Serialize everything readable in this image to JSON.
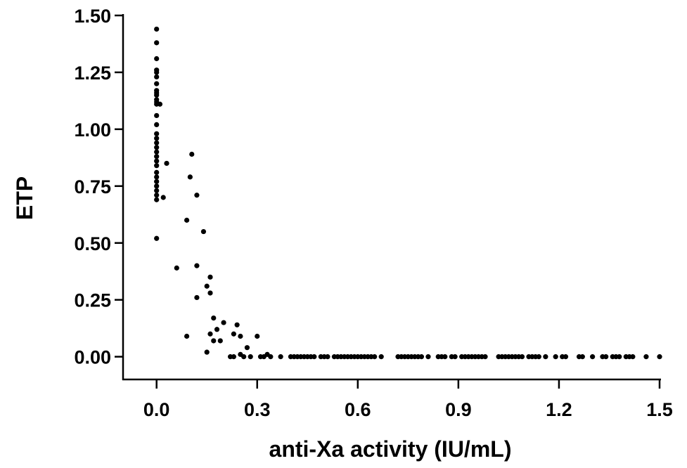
{
  "chart_data": {
    "type": "scatter",
    "xlabel": "anti-Xa activity (IU/mL)",
    "ylabel": "ETP",
    "color": "#000000",
    "x": [
      0,
      0,
      0,
      0,
      0,
      0,
      0,
      0,
      0,
      0,
      0,
      0,
      0,
      0,
      0,
      0,
      0,
      0,
      0,
      0,
      0,
      0,
      0,
      0,
      0,
      0,
      0,
      0,
      0,
      0,
      0,
      0.01,
      0.02,
      0.03,
      0.105,
      0.1,
      0.12,
      0.09,
      0.14,
      0.06,
      0.12,
      0.16,
      0.15,
      0.16,
      0.12,
      0.17,
      0.2,
      0.24,
      0.09,
      0.16,
      0.18,
      0.23,
      0.25,
      0.3,
      0.17,
      0.19,
      0.27,
      0.15,
      0.25,
      0.33,
      0.22,
      0.23,
      0.26,
      0.28,
      0.31,
      0.32,
      0.34,
      0.37,
      0.4,
      0.41,
      0.42,
      0.43,
      0.44,
      0.45,
      0.46,
      0.47,
      0.49,
      0.5,
      0.51,
      0.53,
      0.54,
      0.55,
      0.56,
      0.57,
      0.58,
      0.59,
      0.6,
      0.61,
      0.62,
      0.63,
      0.64,
      0.65,
      0.67,
      0.72,
      0.73,
      0.74,
      0.75,
      0.76,
      0.77,
      0.78,
      0.79,
      0.81,
      0.84,
      0.85,
      0.86,
      0.88,
      0.89,
      0.91,
      0.92,
      0.93,
      0.94,
      0.95,
      0.96,
      0.97,
      0.98,
      1.02,
      1.03,
      1.04,
      1.05,
      1.06,
      1.07,
      1.08,
      1.09,
      1.11,
      1.12,
      1.13,
      1.14,
      1.16,
      1.19,
      1.21,
      1.22,
      1.26,
      1.27,
      1.3,
      1.33,
      1.34,
      1.36,
      1.37,
      1.38,
      1.4,
      1.41,
      1.42,
      1.46,
      1.5
    ],
    "y": [
      1.44,
      1.38,
      1.31,
      1.26,
      1.25,
      1.23,
      1.2,
      1.17,
      1.16,
      1.15,
      1.13,
      1.12,
      1.11,
      1.06,
      1.02,
      0.98,
      0.96,
      0.94,
      0.92,
      0.9,
      0.88,
      0.86,
      0.84,
      0.81,
      0.79,
      0.77,
      0.75,
      0.73,
      0.71,
      0.69,
      0.52,
      1.11,
      0.7,
      0.85,
      0.89,
      0.79,
      0.71,
      0.6,
      0.55,
      0.39,
      0.4,
      0.35,
      0.31,
      0.28,
      0.26,
      0.17,
      0.15,
      0.14,
      0.09,
      0.1,
      0.12,
      0.1,
      0.09,
      0.09,
      0.07,
      0.07,
      0.04,
      0.02,
      0.01,
      0.01,
      0,
      0,
      0,
      0,
      0,
      0,
      0,
      0,
      0,
      0,
      0,
      0,
      0,
      0,
      0,
      0,
      0,
      0,
      0,
      0,
      0,
      0,
      0,
      0,
      0,
      0,
      0,
      0,
      0,
      0,
      0,
      0,
      0,
      0,
      0,
      0,
      0,
      0,
      0,
      0,
      0,
      0,
      0,
      0,
      0,
      0,
      0,
      0,
      0,
      0,
      0,
      0,
      0,
      0,
      0,
      0,
      0,
      0,
      0,
      0,
      0,
      0,
      0,
      0,
      0,
      0,
      0,
      0,
      0,
      0,
      0,
      0,
      0,
      0,
      0,
      0,
      0,
      0,
      0,
      0,
      0,
      0,
      0,
      0
    ],
    "xlim": [
      -0.1,
      1.5
    ],
    "ylim": [
      -0.1,
      1.5
    ],
    "xticks": [
      {
        "value": 0,
        "label": "0.0"
      },
      0.3,
      0.6,
      0.9,
      1.2,
      1.5
    ],
    "yticks": [
      {
        "value": 0,
        "label": "0.00"
      },
      0.25,
      {
        "value": 0.5,
        "label": "0.50"
      },
      0.75,
      {
        "value": 1,
        "label": "1.00"
      },
      1.25,
      {
        "value": 1.5,
        "label": "1.50"
      }
    ]
  }
}
